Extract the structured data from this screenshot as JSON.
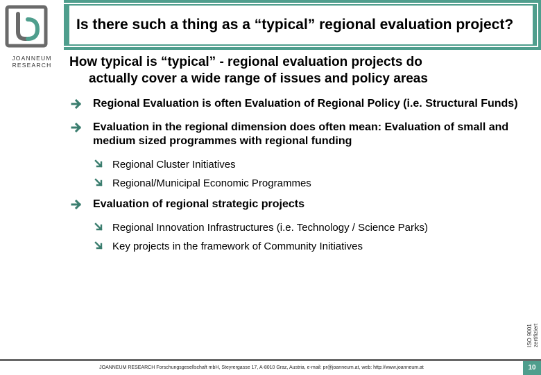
{
  "colors": {
    "accent": "#4f9e8d",
    "arrow": "#3a7d6e",
    "text": "#000000",
    "logo_gray": "#6a6a6a",
    "background": "#ffffff"
  },
  "logo": {
    "line1": "JOANNEUM",
    "line2": "RESEARCH"
  },
  "title": "Is there such a thing as a “typical” regional evaluation project?",
  "subtitle_line1": "How typical is “typical” - regional evaluation projects do",
  "subtitle_line2": "actually cover a wide range of issues and policy areas",
  "bullets": [
    {
      "text": "Regional Evaluation is often Evaluation of Regional Policy (i.e. Structural Funds)",
      "sub": []
    },
    {
      "text": "Evaluation in the regional dimension does often mean: Evaluation of small and medium sized programmes with regional funding",
      "sub": [
        "Regional Cluster Initiatives",
        "Regional/Municipal Economic Programmes"
      ]
    },
    {
      "text": "Evaluation of regional strategic projects",
      "sub": [
        "Regional Innovation Infrastructures (i.e. Technology / Science Parks)",
        "Key projects in the framework of Community Initiatives"
      ]
    }
  ],
  "iso_label": "ISO 9001 zertifiziert",
  "footer": {
    "text": "JOANNEUM RESEARCH Forschungsgesellschaft mbH, Steyrergasse 17, A-8010 Graz, Austria,   e-mail:   pr@joanneum.at, web: http://www.joanneum.at",
    "page": "10"
  },
  "fonts": {
    "title_size": 21,
    "subtitle_size": 19,
    "bullet_size": 16,
    "subbullet_size": 15,
    "footer_size": 7
  }
}
